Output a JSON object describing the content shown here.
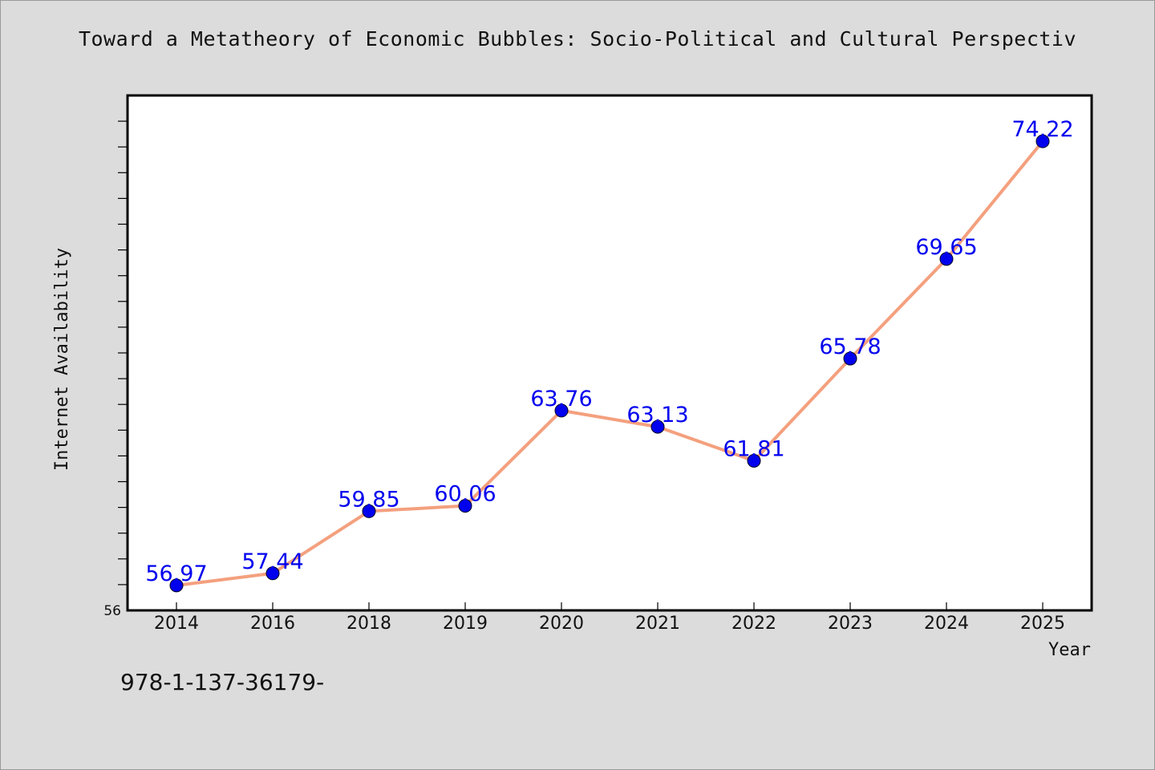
{
  "title": "Toward a Metatheory of Economic Bubbles: Socio-Political and Cultural Perspectiv",
  "footer_text": "978-1-137-36179-",
  "colors": {
    "background": "#dcdcdc",
    "plot_background": "#ffffff",
    "line": "#f4a07e",
    "marker": "#0000ee",
    "data_label": "#0000ee"
  },
  "chart_data": {
    "type": "line",
    "title": "Toward a Metatheory of Economic Bubbles: Socio-Political and Cultural Perspectiv",
    "xlabel": "Year",
    "ylabel": "Internet Availability",
    "categories": [
      "2014",
      "2016",
      "2018",
      "2019",
      "2020",
      "2021",
      "2022",
      "2023",
      "2024",
      "2025"
    ],
    "series": [
      {
        "values": [
          56.97,
          57.44,
          59.85,
          60.06,
          63.76,
          63.13,
          61.81,
          65.78,
          69.65,
          74.22
        ],
        "data_labels": [
          "56.97",
          "57.44",
          "59.85",
          "60.06",
          "63.76",
          "63.13",
          "61.81",
          "65.78",
          "69.65",
          "74.22"
        ]
      }
    ],
    "y_tick_labels": [
      "56"
    ],
    "ylim": [
      56,
      76
    ],
    "y_minor_tick_step": 1,
    "grid": false,
    "legend": "none"
  }
}
